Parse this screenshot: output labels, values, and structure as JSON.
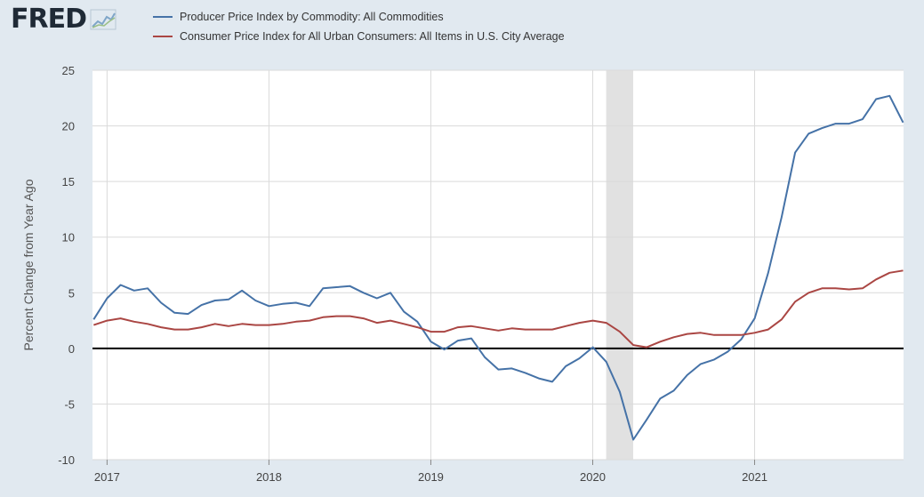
{
  "logo": {
    "text": "FRED",
    "icon": "fred-chart-icon"
  },
  "chart_data": {
    "type": "line",
    "title": "",
    "xlabel": "",
    "ylabel": "Percent Change from Year Ago",
    "ylim": [
      -10,
      25
    ],
    "yticks": [
      "25",
      "20",
      "15",
      "10",
      "5",
      "0",
      "-5",
      "-10"
    ],
    "ytick_values": [
      25,
      20,
      15,
      10,
      5,
      0,
      -5,
      -10
    ],
    "xlim": [
      2016.91,
      2021.92
    ],
    "xticks": [
      "2017",
      "2018",
      "2019",
      "2020",
      "2021"
    ],
    "xtick_values": [
      2017,
      2018,
      2019,
      2020,
      2021
    ],
    "recession": {
      "start": 2020.083,
      "end": 2020.25,
      "color": "#e1e1e1"
    },
    "zero_line": true,
    "legend_position": "top",
    "series": [
      {
        "name": "Producer Price Index by Commodity: All Commodities",
        "color": "#4572a7",
        "values": [
          2.6,
          4.5,
          5.7,
          5.2,
          5.4,
          4.1,
          3.2,
          3.1,
          3.9,
          4.3,
          4.4,
          5.2,
          4.3,
          3.8,
          4.0,
          4.1,
          3.8,
          5.4,
          5.5,
          5.6,
          5.0,
          4.5,
          5.0,
          3.3,
          2.4,
          0.6,
          -0.1,
          0.7,
          0.9,
          -0.8,
          -1.9,
          -1.8,
          -2.2,
          -2.7,
          -3.0,
          -1.6,
          -0.9,
          0.1,
          -1.2,
          -3.9,
          -8.2,
          -6.4,
          -4.5,
          -3.8,
          -2.4,
          -1.4,
          -1.0,
          -0.3,
          0.8,
          2.7,
          6.8,
          11.8,
          17.6,
          19.3,
          19.8,
          20.2,
          20.2,
          20.6,
          22.4,
          22.7,
          20.3
        ]
      },
      {
        "name": "Consumer Price Index for All Urban Consumers: All Items in U.S. City Average",
        "color": "#aa4643",
        "values": [
          2.1,
          2.5,
          2.7,
          2.4,
          2.2,
          1.9,
          1.7,
          1.7,
          1.9,
          2.2,
          2.0,
          2.2,
          2.1,
          2.1,
          2.2,
          2.4,
          2.5,
          2.8,
          2.9,
          2.9,
          2.7,
          2.3,
          2.5,
          2.2,
          1.9,
          1.5,
          1.5,
          1.9,
          2.0,
          1.8,
          1.6,
          1.8,
          1.7,
          1.7,
          1.7,
          2.0,
          2.3,
          2.5,
          2.3,
          1.5,
          0.3,
          0.1,
          0.6,
          1.0,
          1.3,
          1.4,
          1.2,
          1.2,
          1.2,
          1.4,
          1.7,
          2.6,
          4.2,
          5.0,
          5.4,
          5.4,
          5.3,
          5.4,
          6.2,
          6.8,
          7.0
        ]
      }
    ]
  }
}
